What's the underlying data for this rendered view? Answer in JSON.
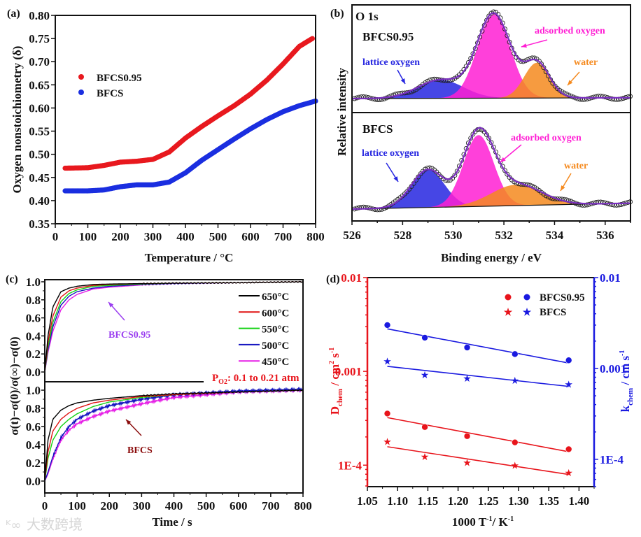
{
  "watermark": "大数跨境",
  "chart_data": [
    {
      "panel": "(a)",
      "type": "scatter",
      "xlabel": "Temperature / °C",
      "ylabel": "Oxygen nonstoichiometry (δ)",
      "xlim": [
        0,
        800
      ],
      "ylim": [
        0.35,
        0.8
      ],
      "xticks": [
        "0",
        "100",
        "200",
        "300",
        "400",
        "500",
        "600",
        "700",
        "800"
      ],
      "yticks": [
        "0.35",
        "0.40",
        "0.45",
        "0.50",
        "0.55",
        "0.60",
        "0.65",
        "0.70",
        "0.75",
        "0.80"
      ],
      "legend_position": "upper-left",
      "series": [
        {
          "name": "BFCS0.95",
          "color": "#e8191f",
          "x": [
            30,
            100,
            150,
            200,
            250,
            300,
            350,
            400,
            450,
            500,
            550,
            600,
            650,
            700,
            750,
            790
          ],
          "y": [
            0.47,
            0.471,
            0.476,
            0.483,
            0.485,
            0.489,
            0.505,
            0.535,
            0.56,
            0.583,
            0.605,
            0.63,
            0.66,
            0.695,
            0.733,
            0.75
          ]
        },
        {
          "name": "BFCS",
          "color": "#1a2ee0",
          "x": [
            30,
            100,
            150,
            200,
            250,
            300,
            350,
            400,
            450,
            500,
            550,
            600,
            650,
            700,
            750,
            800
          ],
          "y": [
            0.421,
            0.421,
            0.423,
            0.43,
            0.434,
            0.434,
            0.44,
            0.46,
            0.487,
            0.51,
            0.533,
            0.555,
            0.575,
            0.592,
            0.605,
            0.615
          ]
        }
      ]
    },
    {
      "panel": "(b)",
      "type": "area",
      "title": "O 1s",
      "xlabel": "Binding energy / eV",
      "ylabel": "Relative intensity",
      "xlim": [
        526,
        537
      ],
      "xticks": [
        "526",
        "528",
        "530",
        "532",
        "534",
        "536"
      ],
      "subplots": [
        {
          "name": "BFCS0.95",
          "baseline": [
            0.0,
            0.01
          ],
          "components": [
            {
              "label": "lattice oxygen",
              "color": "#2626e0",
              "center": 529.5,
              "height": 0.22,
              "sigma": 0.9
            },
            {
              "label": "adsorbed oxygen",
              "color": "#ff1fd4",
              "center": 531.6,
              "height": 1.0,
              "sigma": 0.65
            },
            {
              "label": "water",
              "color": "#f58a1f",
              "center": 533.3,
              "height": 0.42,
              "sigma": 0.5
            }
          ]
        },
        {
          "name": "BFCS",
          "baseline": [
            0.0,
            0.07
          ],
          "components": [
            {
              "label": "lattice oxygen",
              "color": "#2626e0",
              "center": 529.0,
              "height": 0.45,
              "sigma": 0.65
            },
            {
              "label": "adsorbed oxygen",
              "color": "#ff1fd4",
              "center": 531.0,
              "height": 0.85,
              "sigma": 0.6
            },
            {
              "label": "water",
              "color": "#f58a1f",
              "center": 532.5,
              "height": 0.25,
              "sigma": 1.0
            }
          ]
        }
      ]
    },
    {
      "panel": "(c)",
      "type": "line",
      "xlabel": "Time / s",
      "ylabel": "σ(t)−σ(0)/σ(∞)−σ(0)",
      "xlim": [
        0,
        800
      ],
      "ylim": [
        0,
        1.0
      ],
      "xticks": [
        "0",
        "100",
        "200",
        "300",
        "400",
        "500",
        "600",
        "700",
        "800"
      ],
      "yticks": [
        "0.0",
        "0.2",
        "0.4",
        "0.6",
        "0.8",
        "1.0"
      ],
      "annotation": {
        "prefix": "P",
        "sub": "O2",
        "text": ": 0.1  to 0.21 atm"
      },
      "legend_position": "upper-right",
      "x": [
        0,
        10,
        25,
        50,
        75,
        100,
        150,
        200,
        300,
        400,
        600,
        800
      ],
      "subplots": [
        {
          "name": "BFCS0.95",
          "label_color": "#9b3ff0",
          "series": [
            {
              "name": "650°C",
              "color": "#000000",
              "values": [
                0,
                0.4,
                0.72,
                0.89,
                0.93,
                0.95,
                0.97,
                0.975,
                0.98,
                0.985,
                0.99,
                1.0
              ]
            },
            {
              "name": "600°C",
              "color": "#e01414",
              "values": [
                0,
                0.33,
                0.62,
                0.83,
                0.9,
                0.93,
                0.96,
                0.97,
                0.98,
                0.985,
                0.99,
                1.0
              ]
            },
            {
              "name": "550°C",
              "color": "#14d214",
              "values": [
                0,
                0.28,
                0.55,
                0.78,
                0.87,
                0.91,
                0.95,
                0.96,
                0.975,
                0.985,
                0.99,
                1.0
              ]
            },
            {
              "name": "500°C",
              "color": "#1414c0",
              "values": [
                0,
                0.25,
                0.5,
                0.74,
                0.84,
                0.89,
                0.93,
                0.95,
                0.97,
                0.98,
                0.99,
                1.0
              ]
            },
            {
              "name": "450°C",
              "color": "#e61ee6",
              "values": [
                0,
                0.22,
                0.45,
                0.69,
                0.8,
                0.86,
                0.92,
                0.94,
                0.965,
                0.98,
                0.99,
                1.0
              ]
            }
          ]
        },
        {
          "name": "BFCS",
          "label_color": "#8b0d0d",
          "series": [
            {
              "name": "650°C",
              "color": "#000000",
              "values": [
                0,
                0.45,
                0.68,
                0.78,
                0.83,
                0.86,
                0.89,
                0.91,
                0.94,
                0.96,
                0.98,
                1.0
              ]
            },
            {
              "name": "600°C",
              "color": "#e01414",
              "values": [
                0,
                0.32,
                0.55,
                0.68,
                0.75,
                0.8,
                0.86,
                0.89,
                0.93,
                0.95,
                0.98,
                1.0
              ]
            },
            {
              "name": "550°C",
              "color": "#14d214",
              "values": [
                0,
                0.25,
                0.45,
                0.6,
                0.68,
                0.74,
                0.82,
                0.87,
                0.92,
                0.95,
                0.98,
                1.0
              ]
            },
            {
              "name": "500°C",
              "color": "#1414c0",
              "values": [
                0,
                0.1,
                0.27,
                0.48,
                0.6,
                0.68,
                0.77,
                0.83,
                0.9,
                0.95,
                0.99,
                1.01
              ]
            },
            {
              "name": "450°C",
              "color": "#e61ee6",
              "values": [
                0,
                0.08,
                0.24,
                0.45,
                0.56,
                0.63,
                0.71,
                0.77,
                0.85,
                0.92,
                0.98,
                1.0
              ]
            }
          ]
        }
      ]
    },
    {
      "panel": "(d)",
      "type": "scatter",
      "xlabel": {
        "main": "1000 T",
        "sup1": "-1",
        "mid": "/ K",
        "sup2": "-1"
      },
      "ylabel_left": {
        "main": "D",
        "sub": "chem",
        "rest": " / cm",
        "sup1": "2",
        "rest2": " s",
        "sup2": "-1",
        "color": "#e8141b"
      },
      "ylabel_right": {
        "main": "k",
        "sub": "chem",
        "rest": " / cm s",
        "sup": "-1",
        "color": "#1a1ae0"
      },
      "xlim": [
        1.05,
        1.425
      ],
      "xticks": [
        "1.05",
        "1.10",
        "1.15",
        "1.20",
        "1.25",
        "1.30",
        "1.35",
        "1.40"
      ],
      "yscale": "log",
      "ylim_left": [
        5.9e-05,
        0.01
      ],
      "ylim_right": [
        5e-05,
        0.01
      ],
      "yticks_left": [
        "0.01",
        "0.001",
        "1E-4"
      ],
      "yticks_right": [
        "0.01",
        "0.001",
        "1E-4"
      ],
      "legend_position": "upper-right",
      "legend": [
        "BFCS0.95",
        "BFCS"
      ],
      "x": [
        1.083,
        1.145,
        1.215,
        1.294,
        1.383
      ],
      "series": [
        {
          "name": "BFCS0.95 D_chem",
          "axis": "left",
          "marker": "circle",
          "color": "#e8141b",
          "values": [
            0.000355,
            0.000255,
            0.000204,
            0.000175,
            0.000148
          ]
        },
        {
          "name": "BFCS D_chem",
          "axis": "left",
          "marker": "star",
          "color": "#e8141b",
          "values": [
            0.000178,
            0.000123,
            0.000107,
            0.0001,
            8.3e-05
          ]
        },
        {
          "name": "BFCS0.95 k_chem",
          "axis": "right",
          "marker": "circle",
          "color": "#1a1ae0",
          "values": [
            0.003,
            0.00218,
            0.0017,
            0.00144,
            0.00123
          ]
        },
        {
          "name": "BFCS k_chem",
          "axis": "right",
          "marker": "star",
          "color": "#1a1ae0",
          "values": [
            0.0012,
            0.00085,
            0.00078,
            0.00074,
            0.00067
          ]
        }
      ]
    }
  ]
}
